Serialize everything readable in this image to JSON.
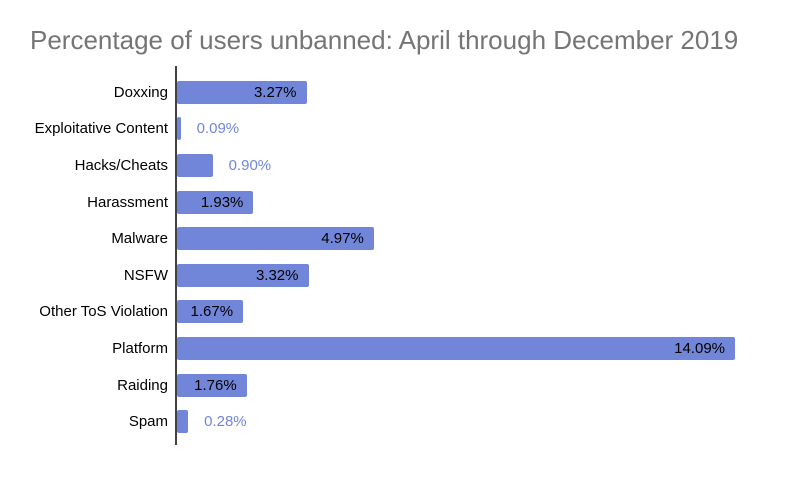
{
  "chart_data": {
    "type": "bar",
    "orientation": "horizontal",
    "title": "Percentage of users unbanned: April through December 2019",
    "categories": [
      "Doxxing",
      "Exploitative Content",
      "Hacks/Cheats",
      "Harassment",
      "Malware",
      "NSFW",
      "Other ToS Violation",
      "Platform",
      "Raiding",
      "Spam"
    ],
    "values": [
      3.27,
      0.09,
      0.9,
      1.93,
      4.97,
      3.32,
      1.67,
      14.09,
      1.76,
      0.28
    ],
    "value_labels": [
      "3.27%",
      "0.09%",
      "0.90%",
      "1.93%",
      "4.97%",
      "3.32%",
      "1.67%",
      "14.09%",
      "1.76%",
      "0.28%"
    ],
    "xlim": [
      0,
      15
    ],
    "grid": false,
    "legend_position": "none",
    "x_axis_ticks_visible": false,
    "colors": {
      "bar": "#7286D9",
      "title_text": "#757575",
      "category_text": "#000000",
      "value_text_inside": "#000000",
      "value_text_outside": "#7286D9",
      "axis_line": "#424242",
      "background": "#FFFFFF"
    }
  }
}
